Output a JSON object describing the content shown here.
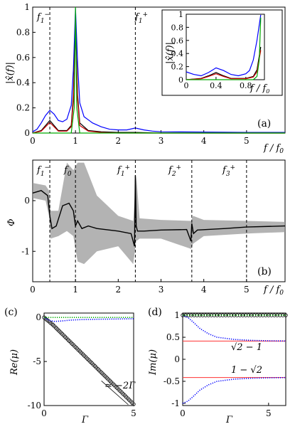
{
  "chart_data": [
    {
      "panel": "(a)",
      "type": "line",
      "xlabel": "f / f0",
      "ylabel": "|x̂(f)|",
      "xlim": [
        0,
        5.9
      ],
      "ylim": [
        0,
        1
      ],
      "xticks": [
        "0",
        "1",
        "2",
        "3",
        "4",
        "5"
      ],
      "yticks": [
        "0",
        "0.2",
        "0.4",
        "0.6",
        "0.8",
        "1"
      ],
      "vlines": [
        {
          "x": 0.4,
          "label": "f1−"
        },
        {
          "x": 2.4,
          "label": "f1+"
        }
      ],
      "series": [
        {
          "color": "#0000ff",
          "x": [
            0,
            0.1,
            0.2,
            0.3,
            0.4,
            0.5,
            0.6,
            0.7,
            0.8,
            0.9,
            0.95,
            1.0,
            1.05,
            1.1,
            1.2,
            1.4,
            1.6,
            1.8,
            2.0,
            2.2,
            2.4,
            2.6,
            2.8,
            3.0,
            4.0,
            5.0,
            5.9
          ],
          "y": [
            0.01,
            0.03,
            0.08,
            0.14,
            0.18,
            0.15,
            0.1,
            0.09,
            0.11,
            0.22,
            0.5,
            0.99,
            0.55,
            0.24,
            0.13,
            0.08,
            0.05,
            0.03,
            0.025,
            0.025,
            0.04,
            0.025,
            0.015,
            0.01,
            0.008,
            0.005,
            0.005
          ]
        },
        {
          "color": "#000000",
          "x": [
            0,
            0.2,
            0.3,
            0.4,
            0.5,
            0.6,
            0.8,
            0.9,
            0.95,
            1.0,
            1.05,
            1.1,
            1.3,
            1.6,
            2.0,
            2.4,
            3.0,
            5.9
          ],
          "y": [
            0.0,
            0.02,
            0.06,
            0.1,
            0.06,
            0.02,
            0.02,
            0.06,
            0.3,
            0.85,
            0.3,
            0.08,
            0.02,
            0.01,
            0.005,
            0.005,
            0.0,
            0.0
          ]
        },
        {
          "color": "#cc0000",
          "x": [
            0,
            0.2,
            0.3,
            0.4,
            0.5,
            0.6,
            0.8,
            0.9,
            0.95,
            1.0,
            1.05,
            1.1,
            1.3,
            1.6,
            2.0,
            5.9
          ],
          "y": [
            0.0,
            0.015,
            0.05,
            0.085,
            0.05,
            0.015,
            0.015,
            0.05,
            0.25,
            0.8,
            0.26,
            0.06,
            0.015,
            0.005,
            0.0,
            0.0
          ]
        },
        {
          "color": "#00aa00",
          "x": [
            0,
            0.9,
            0.97,
            1.0,
            1.03,
            1.1,
            5.9
          ],
          "y": [
            0.0,
            0.0,
            0.2,
            1.0,
            0.2,
            0.0,
            0.0
          ]
        }
      ]
    },
    {
      "panel": "(a) inset",
      "type": "line",
      "xlabel": "f / f0",
      "ylabel": "|x̂(f)|",
      "xlim": [
        0,
        1.05
      ],
      "ylim": [
        0,
        1
      ],
      "xticks": [
        "0",
        "0.4",
        "0.8"
      ],
      "yticks": [
        "0",
        "0.2",
        "0.4",
        "0.6",
        "0.8",
        "1"
      ],
      "series": [
        {
          "color": "#0000ff",
          "x": [
            0,
            0.1,
            0.2,
            0.3,
            0.4,
            0.5,
            0.6,
            0.7,
            0.8,
            0.85,
            0.9,
            0.95,
            1.0
          ],
          "y": [
            0.12,
            0.08,
            0.06,
            0.11,
            0.18,
            0.14,
            0.08,
            0.06,
            0.09,
            0.14,
            0.3,
            0.6,
            0.99
          ]
        },
        {
          "color": "#000000",
          "x": [
            0,
            0.2,
            0.3,
            0.4,
            0.5,
            0.6,
            0.8,
            0.9,
            0.95,
            1.0
          ],
          "y": [
            0.0,
            0.02,
            0.06,
            0.11,
            0.06,
            0.02,
            0.02,
            0.05,
            0.15,
            0.5
          ]
        },
        {
          "color": "#cc0000",
          "x": [
            0,
            0.2,
            0.3,
            0.4,
            0.5,
            0.6,
            0.8,
            0.9,
            0.95,
            1.0
          ],
          "y": [
            0.0,
            0.015,
            0.05,
            0.09,
            0.05,
            0.015,
            0.015,
            0.04,
            0.12,
            0.45
          ]
        },
        {
          "color": "#00aa00",
          "x": [
            0,
            0.9,
            0.95,
            0.98,
            1.0
          ],
          "y": [
            0.0,
            0.0,
            0.05,
            0.3,
            0.95
          ]
        }
      ]
    },
    {
      "panel": "(b)",
      "type": "line",
      "xlabel": "f / f0",
      "ylabel": "Φ",
      "xlim": [
        0,
        5.9
      ],
      "ylim": [
        -1.6,
        0.8
      ],
      "xticks": [
        "0",
        "1",
        "2",
        "3",
        "4",
        "5"
      ],
      "yticks": [
        "0",
        "-1"
      ],
      "vlines": [
        {
          "x": 0.4,
          "label": "f1−"
        },
        {
          "x": 1.0,
          "label": "f0"
        },
        {
          "x": 2.4,
          "label": "f1+"
        },
        {
          "x": 3.72,
          "label": "f2+"
        },
        {
          "x": 5.0,
          "label": "f3+"
        }
      ],
      "series": [
        {
          "name": "",
          "color": "#999999",
          "band": true,
          "x": [
            0,
            0.3,
            0.38,
            0.42,
            0.6,
            0.8,
            0.95,
            1.05,
            1.2,
            1.5,
            2.0,
            2.35,
            2.42,
            2.5,
            3.0,
            3.7,
            3.75,
            4.0,
            5.0,
            5.9
          ],
          "upper": [
            0.35,
            0.3,
            0.2,
            -0.2,
            -0.2,
            0.75,
            0.6,
            0.75,
            0.75,
            0.1,
            -0.3,
            -0.4,
            0.5,
            -0.35,
            -0.38,
            -0.4,
            -0.3,
            -0.38,
            -0.4,
            -0.42
          ],
          "lower": [
            0.05,
            0.0,
            -0.3,
            -0.75,
            -0.7,
            -0.6,
            -0.7,
            -1.2,
            -1.25,
            -1.0,
            -0.9,
            -1.25,
            -0.8,
            -0.75,
            -0.75,
            -0.95,
            -0.85,
            -0.7,
            -0.65,
            -0.62
          ]
        },
        {
          "name": "",
          "color": "#000000",
          "x": [
            0,
            0.2,
            0.35,
            0.4,
            0.45,
            0.55,
            0.7,
            0.85,
            0.95,
            1.0,
            1.05,
            1.15,
            1.3,
            1.5,
            2.0,
            2.3,
            2.38,
            2.4,
            2.42,
            2.45,
            2.6,
            3.0,
            3.6,
            3.7,
            3.72,
            3.76,
            3.85,
            4.5,
            5.0,
            5.9
          ],
          "y": [
            0.15,
            0.2,
            0.1,
            -0.3,
            -0.55,
            -0.5,
            -0.1,
            -0.05,
            -0.2,
            -0.5,
            -0.4,
            -0.55,
            -0.5,
            -0.55,
            -0.6,
            -0.65,
            -0.9,
            0.5,
            -0.5,
            -0.6,
            -0.6,
            -0.58,
            -0.57,
            -0.8,
            -0.45,
            -0.65,
            -0.58,
            -0.55,
            -0.52,
            -0.5
          ]
        }
      ]
    },
    {
      "panel": "(c)",
      "type": "line",
      "xlabel": "Γ",
      "ylabel": "Re(μ)",
      "xlim": [
        0,
        5
      ],
      "ylim": [
        -10,
        0.5
      ],
      "xticks": [
        "0",
        "5"
      ],
      "yticks": [
        "0",
        "-5",
        "-10"
      ],
      "annotation": "≃ −2Γ",
      "series": [
        {
          "color": "#000000",
          "marker": "circle",
          "x": [
            0,
            0.5,
            1,
            1.5,
            2,
            2.5,
            3,
            3.5,
            4,
            4.5,
            5
          ],
          "y": [
            0,
            -0.85,
            -1.85,
            -2.85,
            -3.85,
            -4.85,
            -5.85,
            -6.85,
            -7.85,
            -8.85,
            -9.85
          ]
        },
        {
          "color": "#0000ff",
          "marker": "dot",
          "x": [
            0,
            0.3,
            0.6,
            1,
            1.5,
            2,
            3,
            4,
            5
          ],
          "y": [
            0,
            -0.35,
            -0.45,
            -0.4,
            -0.3,
            -0.25,
            -0.2,
            -0.18,
            -0.15
          ]
        },
        {
          "color": "#00aa00",
          "marker": "dot",
          "x": [
            0,
            1,
            2,
            3,
            4,
            5
          ],
          "y": [
            0,
            0,
            0,
            0,
            0,
            0
          ]
        }
      ]
    },
    {
      "panel": "(d)",
      "type": "line",
      "xlabel": "Γ",
      "ylabel": "Im(μ)",
      "xlim": [
        0,
        6
      ],
      "ylim": [
        -1.05,
        1.05
      ],
      "xticks": [
        "0",
        "5"
      ],
      "yticks": [
        "1",
        "0.5",
        "0",
        "-0.5",
        "-1"
      ],
      "hlines": [
        {
          "y": 0.4142,
          "label": "√2 − 1"
        },
        {
          "y": -0.4142,
          "label": "1 − √2"
        }
      ],
      "series": [
        {
          "color": "#000000",
          "marker": "circle",
          "x": [
            0,
            1,
            2,
            3,
            4,
            5,
            6
          ],
          "y": [
            1,
            1,
            1,
            1,
            1,
            1,
            1
          ]
        },
        {
          "color": "#0000ff",
          "marker": "dot",
          "x": [
            0,
            0.3,
            0.6,
            1,
            1.5,
            2,
            3,
            4,
            5,
            6
          ],
          "y": [
            1,
            0.95,
            0.85,
            0.7,
            0.58,
            0.5,
            0.45,
            0.43,
            0.42,
            0.415
          ]
        },
        {
          "color": "#0000ff",
          "marker": "dot",
          "x": [
            0,
            0.3,
            0.6,
            1,
            1.5,
            2,
            3,
            4,
            5,
            6
          ],
          "y": [
            -1,
            -0.95,
            -0.85,
            -0.7,
            -0.58,
            -0.5,
            -0.45,
            -0.43,
            -0.42,
            -0.415
          ]
        },
        {
          "color": "#00aa00",
          "marker": "dot",
          "x": [
            0,
            1,
            2,
            3,
            4,
            5,
            6
          ],
          "y": [
            1,
            1,
            1,
            1,
            1,
            1,
            1
          ]
        }
      ]
    }
  ],
  "labels": {
    "panel_a": "(a)",
    "panel_b": "(b)",
    "panel_c": "(c)",
    "panel_d": "(d)",
    "a_vline_1": "f",
    "a_vline_2": "f",
    "b_vline_1": "f",
    "b_vline_2": "f",
    "b_vline_3": "f",
    "b_vline_4": "f",
    "b_vline_5": "f",
    "annot_c": "≃ −2Γ",
    "hline_up": "√2 − 1",
    "hline_dn": "1 − √2"
  }
}
